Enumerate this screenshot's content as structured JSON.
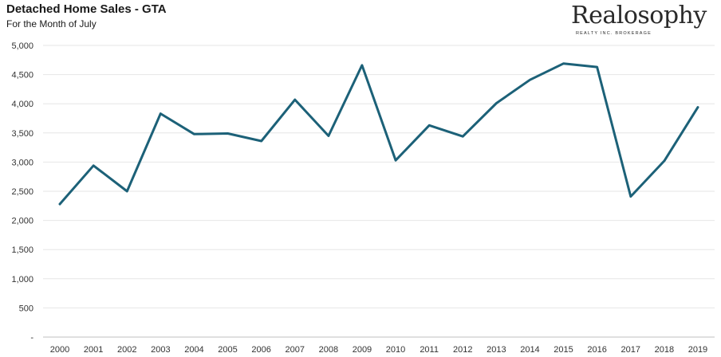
{
  "header": {
    "title": "Detached Home Sales - GTA",
    "subtitle": "For the Month of July"
  },
  "logo": {
    "name": "Realosophy",
    "tagline": "REALTY INC. BROKERAGE"
  },
  "colors": {
    "line": "#1c6178",
    "grid": "#e6e6e6",
    "axis": "#bfbfbf"
  },
  "chart_data": {
    "type": "line",
    "title": "Detached Home Sales - GTA",
    "subtitle": "For the Month of July",
    "xlabel": "",
    "ylabel": "",
    "ylim": [
      0,
      5000
    ],
    "ytick_values": [
      0,
      500,
      1000,
      1500,
      2000,
      2500,
      3000,
      3500,
      4000,
      4500,
      5000
    ],
    "ytick_labels": [
      "-",
      "500",
      "1,000",
      "1,500",
      "2,000",
      "2,500",
      "3,000",
      "3,500",
      "4,000",
      "4,500",
      "5,000"
    ],
    "grid": true,
    "legend": "none",
    "categories": [
      "2000",
      "2001",
      "2002",
      "2003",
      "2004",
      "2005",
      "2006",
      "2007",
      "2008",
      "2009",
      "2010",
      "2011",
      "2012",
      "2013",
      "2014",
      "2015",
      "2016",
      "2017",
      "2018",
      "2019"
    ],
    "series": [
      {
        "values": [
          2280,
          2940,
          2500,
          3830,
          3480,
          3490,
          3360,
          4070,
          3450,
          4660,
          3030,
          3630,
          3440,
          4010,
          4410,
          4690,
          4630,
          2410,
          3020,
          3940
        ]
      }
    ]
  }
}
